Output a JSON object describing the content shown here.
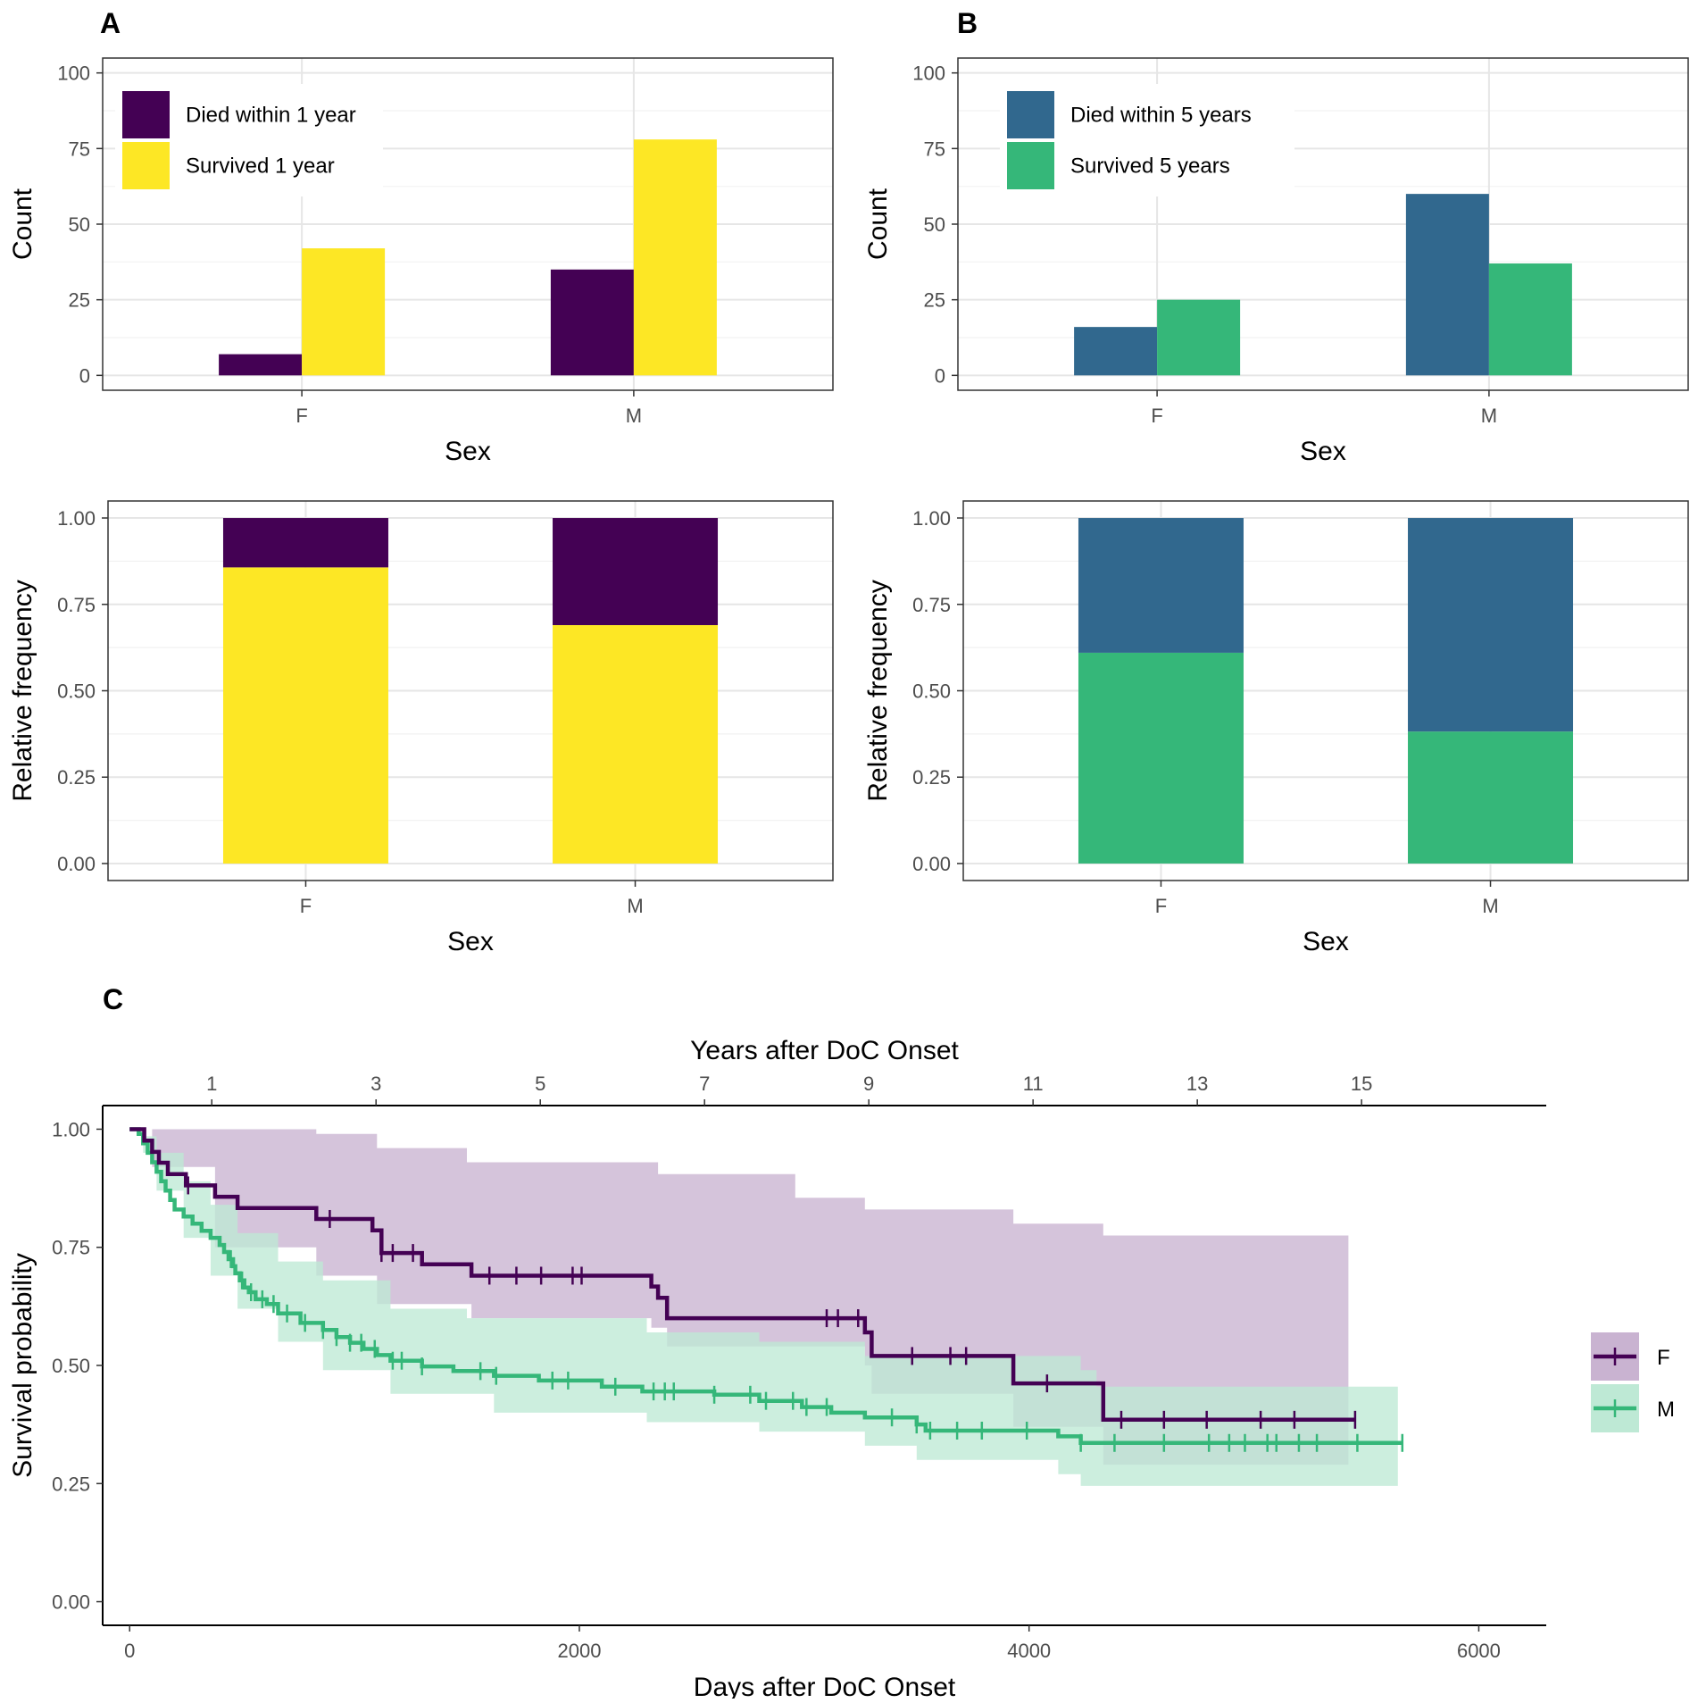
{
  "panels": {
    "a": "A",
    "b": "B",
    "c": "C"
  },
  "chart_data": [
    {
      "id": "A-count",
      "type": "bar",
      "title": "",
      "xlabel": "Sex",
      "ylabel": "Count",
      "categories": [
        "F",
        "M"
      ],
      "ylim": [
        0,
        100
      ],
      "yticks": [
        "0",
        "25",
        "50",
        "75",
        "100"
      ],
      "series": [
        {
          "name": "Died within 1 year",
          "color": "#440154",
          "values": [
            7,
            35
          ]
        },
        {
          "name": "Survived 1 year",
          "color": "#FDE725",
          "values": [
            42,
            78
          ]
        }
      ],
      "legend": "top-left"
    },
    {
      "id": "B-count",
      "type": "bar",
      "title": "",
      "xlabel": "Sex",
      "ylabel": "Count",
      "categories": [
        "F",
        "M"
      ],
      "ylim": [
        0,
        100
      ],
      "yticks": [
        "0",
        "25",
        "50",
        "75",
        "100"
      ],
      "series": [
        {
          "name": "Died within 5 years",
          "color": "#31688E",
          "values": [
            16,
            60
          ]
        },
        {
          "name": "Survived 5 years",
          "color": "#35B779",
          "values": [
            25,
            37
          ]
        }
      ],
      "legend": "top-left"
    },
    {
      "id": "A-relative",
      "type": "bar",
      "stacked": true,
      "title": "",
      "xlabel": "Sex",
      "ylabel": "Relative frequency",
      "categories": [
        "F",
        "M"
      ],
      "ylim": [
        0,
        1
      ],
      "yticks": [
        "0.00",
        "0.25",
        "0.50",
        "0.75",
        "1.00"
      ],
      "series": [
        {
          "name": "Survived 1 year",
          "color": "#FDE725",
          "values": [
            0.857,
            0.69
          ]
        },
        {
          "name": "Died within 1 year",
          "color": "#440154",
          "values": [
            0.143,
            0.31
          ]
        }
      ]
    },
    {
      "id": "B-relative",
      "type": "bar",
      "stacked": true,
      "title": "",
      "xlabel": "Sex",
      "ylabel": "Relative frequency",
      "categories": [
        "F",
        "M"
      ],
      "ylim": [
        0,
        1
      ],
      "yticks": [
        "0.00",
        "0.25",
        "0.50",
        "0.75",
        "1.00"
      ],
      "series": [
        {
          "name": "Survived 5 years",
          "color": "#35B779",
          "values": [
            0.61,
            0.382
          ]
        },
        {
          "name": "Died within 5 years",
          "color": "#31688E",
          "values": [
            0.39,
            0.618
          ]
        }
      ]
    },
    {
      "id": "C-survival",
      "type": "line",
      "step": true,
      "title": "",
      "xlabel": "Days after DoC Onset",
      "ylabel": "Survival probability",
      "x2label": "Years after DoC Onset",
      "xlim": [
        -120,
        6300
      ],
      "ylim": [
        -0.05,
        1.05
      ],
      "xticks": [
        0,
        2000,
        4000,
        6000
      ],
      "xtick_labels": [
        "0",
        "2000",
        "4000",
        "6000"
      ],
      "yticks": [
        0,
        0.25,
        0.5,
        0.75,
        1.0
      ],
      "ytick_labels": [
        "0.00",
        "0.25",
        "0.50",
        "0.75",
        "1.00"
      ],
      "x2ticks": [
        1,
        3,
        5,
        7,
        9,
        11,
        13,
        15
      ],
      "x2tick_labels": [
        "1",
        "3",
        "5",
        "7",
        "9",
        "11",
        "13",
        "15"
      ],
      "days_per_year": 365.25,
      "legend": "right",
      "series": [
        {
          "name": "F",
          "color": "#440154",
          "band_color": "#C9B3D1",
          "steps": [
            [
              0,
              1.0
            ],
            [
              65,
              0.976
            ],
            [
              100,
              0.952
            ],
            [
              130,
              0.929
            ],
            [
              170,
              0.905
            ],
            [
              250,
              0.881
            ],
            [
              380,
              0.857
            ],
            [
              480,
              0.833
            ],
            [
              830,
              0.81
            ],
            [
              1080,
              0.786
            ],
            [
              1120,
              0.738
            ],
            [
              1300,
              0.714
            ],
            [
              1520,
              0.69
            ],
            [
              2320,
              0.667
            ],
            [
              2350,
              0.643
            ],
            [
              2390,
              0.6
            ],
            [
              3270,
              0.57
            ],
            [
              3300,
              0.52
            ],
            [
              3930,
              0.462
            ],
            [
              4330,
              0.385
            ],
            [
              5450,
              0.385
            ]
          ],
          "upper": [
            [
              0,
              1.0
            ],
            [
              100,
              1.0
            ],
            [
              830,
              0.99
            ],
            [
              1100,
              0.96
            ],
            [
              1500,
              0.93
            ],
            [
              2350,
              0.905
            ],
            [
              2960,
              0.855
            ],
            [
              3270,
              0.83
            ],
            [
              3930,
              0.8
            ],
            [
              4330,
              0.775
            ],
            [
              5420,
              0.775
            ]
          ],
          "lower": [
            [
              0,
              1.0
            ],
            [
              100,
              0.92
            ],
            [
              380,
              0.75
            ],
            [
              830,
              0.69
            ],
            [
              1100,
              0.63
            ],
            [
              1520,
              0.6
            ],
            [
              2320,
              0.58
            ],
            [
              2390,
              0.54
            ],
            [
              3270,
              0.5
            ],
            [
              3300,
              0.44
            ],
            [
              3930,
              0.37
            ],
            [
              4330,
              0.29
            ],
            [
              5420,
              0.29
            ]
          ],
          "censored": [
            260,
            890,
            1120,
            1170,
            1260,
            1600,
            1720,
            1830,
            1970,
            2010,
            3100,
            3150,
            3240,
            3480,
            3650,
            3720,
            4080,
            4410,
            4600,
            4790,
            5030,
            5180,
            5450
          ]
        },
        {
          "name": "M",
          "color": "#35B779",
          "band_color": "#BEE9D5",
          "steps": [
            [
              0,
              1.0
            ],
            [
              40,
              0.99
            ],
            [
              60,
              0.97
            ],
            [
              80,
              0.95
            ],
            [
              100,
              0.93
            ],
            [
              120,
              0.91
            ],
            [
              140,
              0.89
            ],
            [
              160,
              0.87
            ],
            [
              180,
              0.85
            ],
            [
              200,
              0.83
            ],
            [
              240,
              0.815
            ],
            [
              280,
              0.8
            ],
            [
              320,
              0.785
            ],
            [
              360,
              0.77
            ],
            [
              400,
              0.755
            ],
            [
              420,
              0.74
            ],
            [
              440,
              0.725
            ],
            [
              460,
              0.71
            ],
            [
              470,
              0.695
            ],
            [
              490,
              0.68
            ],
            [
              510,
              0.665
            ],
            [
              530,
              0.655
            ],
            [
              560,
              0.64
            ],
            [
              610,
              0.63
            ],
            [
              660,
              0.61
            ],
            [
              760,
              0.59
            ],
            [
              860,
              0.575
            ],
            [
              920,
              0.56
            ],
            [
              980,
              0.548
            ],
            [
              1040,
              0.535
            ],
            [
              1100,
              0.522
            ],
            [
              1160,
              0.51
            ],
            [
              1300,
              0.498
            ],
            [
              1440,
              0.488
            ],
            [
              1620,
              0.478
            ],
            [
              1820,
              0.468
            ],
            [
              2100,
              0.455
            ],
            [
              2280,
              0.445
            ],
            [
              2600,
              0.438
            ],
            [
              2800,
              0.425
            ],
            [
              2990,
              0.412
            ],
            [
              3120,
              0.4
            ],
            [
              3270,
              0.39
            ],
            [
              3500,
              0.375
            ],
            [
              3540,
              0.362
            ],
            [
              4130,
              0.35
            ],
            [
              4230,
              0.336
            ],
            [
              5660,
              0.336
            ]
          ],
          "upper": [
            [
              0,
              1.0
            ],
            [
              60,
              0.985
            ],
            [
              120,
              0.95
            ],
            [
              240,
              0.89
            ],
            [
              360,
              0.84
            ],
            [
              480,
              0.78
            ],
            [
              660,
              0.72
            ],
            [
              860,
              0.68
            ],
            [
              1160,
              0.62
            ],
            [
              1500,
              0.6
            ],
            [
              2300,
              0.57
            ],
            [
              2800,
              0.55
            ],
            [
              3270,
              0.52
            ],
            [
              4230,
              0.49
            ],
            [
              4300,
              0.455
            ],
            [
              5640,
              0.455
            ]
          ],
          "lower": [
            [
              0,
              1.0
            ],
            [
              60,
              0.95
            ],
            [
              120,
              0.87
            ],
            [
              240,
              0.77
            ],
            [
              360,
              0.69
            ],
            [
              480,
              0.62
            ],
            [
              660,
              0.55
            ],
            [
              860,
              0.49
            ],
            [
              1160,
              0.44
            ],
            [
              1620,
              0.4
            ],
            [
              2300,
              0.38
            ],
            [
              2800,
              0.36
            ],
            [
              3270,
              0.33
            ],
            [
              3500,
              0.3
            ],
            [
              4130,
              0.27
            ],
            [
              4230,
              0.245
            ],
            [
              5640,
              0.245
            ]
          ],
          "censored": [
            450,
            500,
            540,
            590,
            640,
            700,
            780,
            860,
            920,
            980,
            1030,
            1090,
            1170,
            1210,
            1300,
            1560,
            1630,
            1880,
            1950,
            2160,
            2330,
            2380,
            2420,
            2600,
            2760,
            2830,
            2950,
            3010,
            3100,
            3390,
            3500,
            3560,
            3680,
            3790,
            3990,
            4230,
            4380,
            4600,
            4800,
            4890,
            4960,
            5060,
            5100,
            5200,
            5280,
            5460,
            5660
          ]
        }
      ]
    }
  ]
}
